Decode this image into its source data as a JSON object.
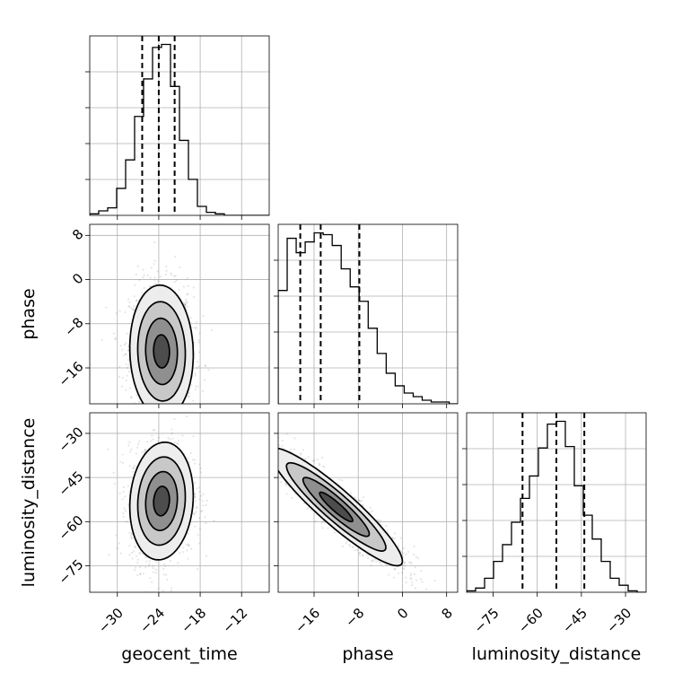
{
  "chart_data": {
    "type": "corner",
    "parameters": [
      "geocent_time",
      "phase",
      "luminosity_distance"
    ],
    "axis_labels": {
      "geocent_time": "geocent_time",
      "phase": "phase",
      "luminosity_distance": "luminosity_distance"
    },
    "ranges": {
      "geocent_time": [
        -34,
        -8
      ],
      "phase": [
        -22.5,
        10
      ],
      "luminosity_distance": [
        -84,
        -23
      ]
    },
    "ticks": {
      "geocent_time": [
        -30,
        -24,
        -18,
        -12
      ],
      "phase": [
        -16,
        -8,
        0,
        8
      ],
      "luminosity_distance": [
        -75,
        -60,
        -45,
        -30
      ]
    },
    "tick_labels": {
      "geocent_time": [
        "−30",
        "−24",
        "−18",
        "−12"
      ],
      "phase": [
        "−16",
        "−8",
        "0",
        "8"
      ],
      "luminosity_distance": [
        "−75",
        "−60",
        "−45",
        "−30"
      ]
    },
    "quantiles": {
      "geocent_time": [
        -26.4,
        -24.0,
        -21.7
      ],
      "phase": [
        -18.5,
        -14.8,
        -7.8
      ],
      "luminosity_distance": [
        -65,
        -53.5,
        -44
      ]
    },
    "histograms": [
      {
        "param": "geocent_time",
        "edges_start": -34,
        "bin_width": 1.3,
        "counts": [
          1,
          3,
          5,
          18,
          37,
          66,
          91,
          112,
          114,
          86,
          50,
          24,
          6,
          2,
          1,
          0,
          0,
          0,
          0,
          0
        ]
      },
      {
        "param": "phase",
        "edges_start": -22.5,
        "bin_width": 1.63,
        "counts": [
          63,
          92,
          84,
          90,
          95,
          94,
          88,
          75,
          65,
          57,
          42,
          28,
          17,
          10,
          6,
          4,
          2,
          1,
          1,
          0
        ]
      },
      {
        "param": "luminosity_distance",
        "edges_start": -84,
        "bin_width": 3.05,
        "counts": [
          1,
          3,
          10,
          22,
          34,
          50,
          67,
          83,
          103,
          120,
          122,
          104,
          76,
          55,
          38,
          22,
          10,
          5,
          1,
          0
        ]
      }
    ],
    "pairs": [
      {
        "x": "geocent_time",
        "y": "phase",
        "center": [
          -23.6,
          -13.0
        ],
        "sigma": [
          2.3,
          6.0
        ],
        "corr": -0.05,
        "n_points": 1400
      },
      {
        "x": "geocent_time",
        "y": "luminosity_distance",
        "center": [
          -23.6,
          -53.0
        ],
        "sigma": [
          2.3,
          10.0
        ],
        "corr": 0.1,
        "n_points": 1400
      },
      {
        "x": "phase",
        "y": "luminosity_distance",
        "center": [
          -12.0,
          -55.0
        ],
        "sigma": [
          6.0,
          10.0
        ],
        "corr": -0.92,
        "n_points": 1400
      }
    ],
    "contour_levels_sigma": [
      0.5,
      1.0,
      1.5,
      2.0
    ],
    "grid": true
  }
}
